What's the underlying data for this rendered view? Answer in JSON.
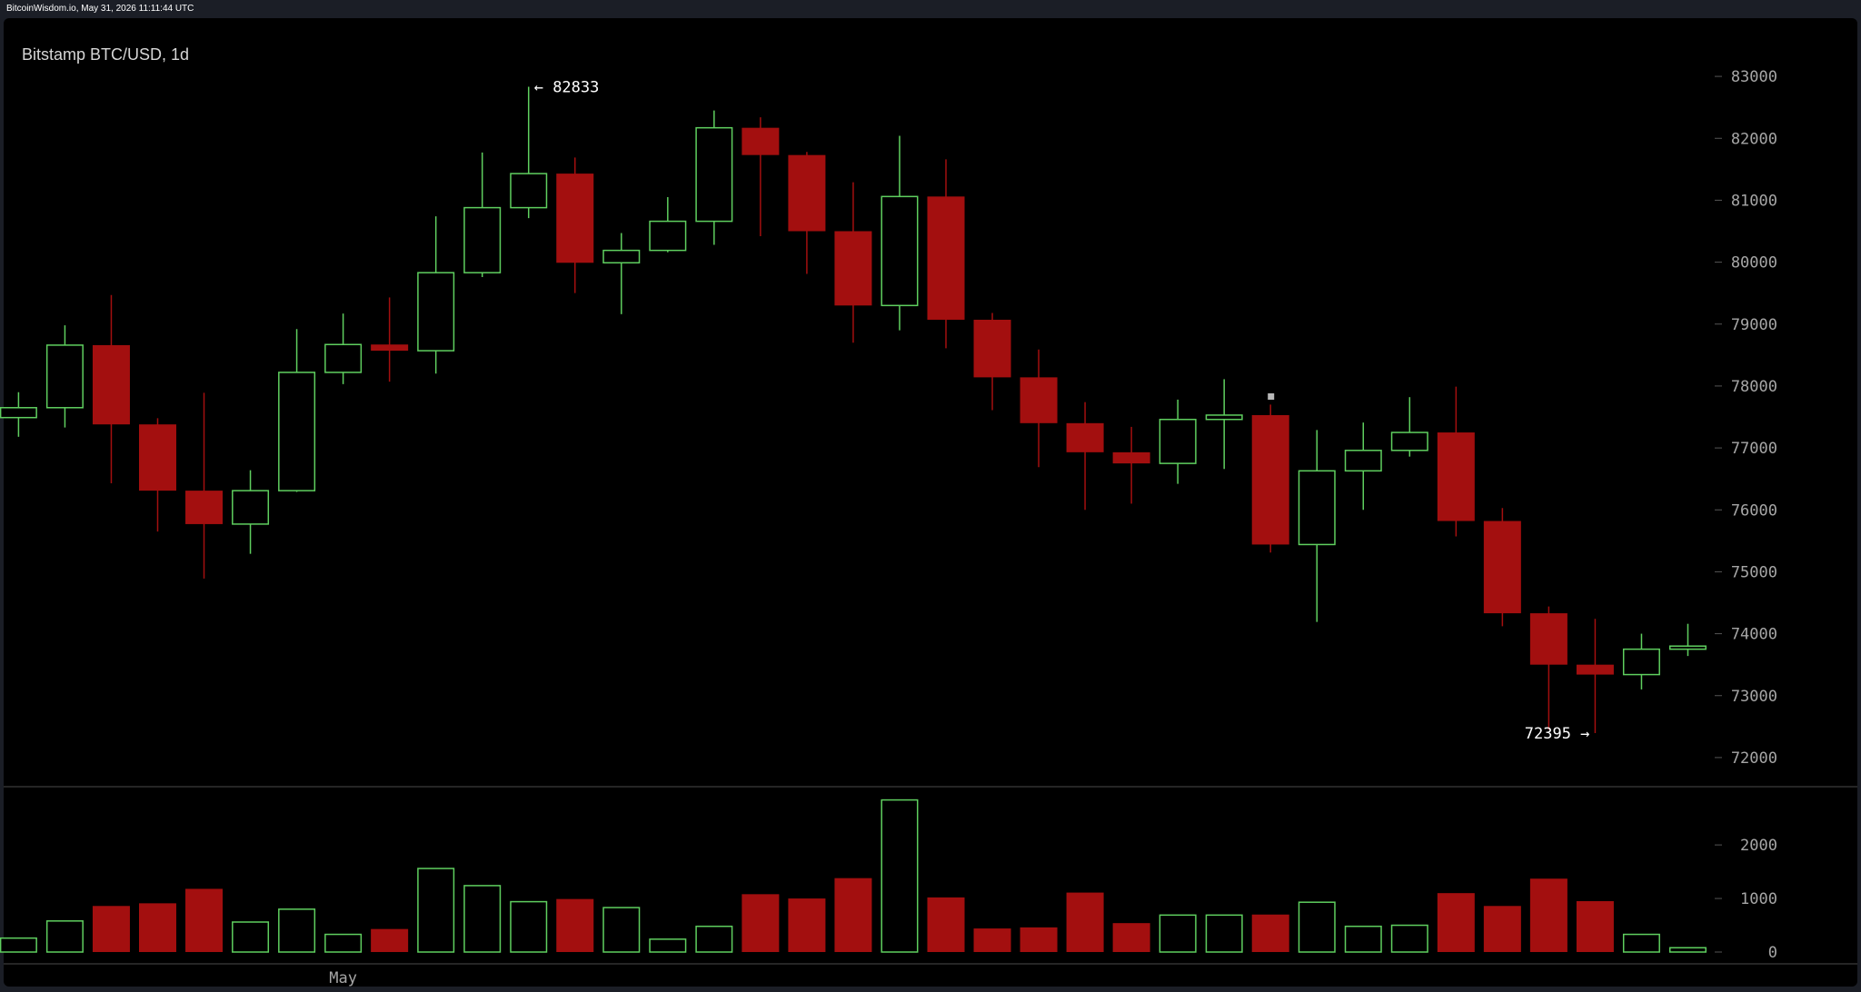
{
  "header": {
    "status_line": "BitcoinWisdom.io, May 31, 2026 11:11:44 UTC"
  },
  "chart_data": {
    "type": "candlestick",
    "title": "Bitstamp BTC/USD, 1d",
    "x_tick_labels": [
      {
        "label": "May",
        "index": 7
      }
    ],
    "price_axis": {
      "ticks": [
        72000,
        73000,
        74000,
        75000,
        76000,
        77000,
        78000,
        79000,
        80000,
        81000,
        82000,
        83000
      ],
      "ylim": [
        71500,
        83500
      ]
    },
    "volume_axis": {
      "ticks": [
        0,
        1000,
        2000
      ],
      "ylim": [
        0,
        2850
      ]
    },
    "annotations": [
      {
        "label": "← 82833",
        "value": 82833,
        "index": 11
      },
      {
        "label": "72395 →",
        "value": 72395,
        "index": 34
      }
    ],
    "up_color": "#5fcf5f",
    "down_color": "#a30f0f",
    "candles": [
      {
        "open": 77490,
        "high": 77900,
        "low": 77180,
        "close": 77650,
        "volume": 260
      },
      {
        "open": 77650,
        "high": 78980,
        "low": 77330,
        "close": 78660,
        "volume": 580
      },
      {
        "open": 78660,
        "high": 79470,
        "low": 76430,
        "close": 77380,
        "volume": 860
      },
      {
        "open": 77380,
        "high": 77480,
        "low": 75650,
        "close": 76310,
        "volume": 910
      },
      {
        "open": 76310,
        "high": 77890,
        "low": 74890,
        "close": 75770,
        "volume": 1180
      },
      {
        "open": 75770,
        "high": 76640,
        "low": 75290,
        "close": 76310,
        "volume": 560
      },
      {
        "open": 76310,
        "high": 78920,
        "low": 76290,
        "close": 78220,
        "volume": 800
      },
      {
        "open": 78220,
        "high": 79170,
        "low": 78030,
        "close": 78670,
        "volume": 330
      },
      {
        "open": 78670,
        "high": 79430,
        "low": 78070,
        "close": 78570,
        "volume": 430
      },
      {
        "open": 78570,
        "high": 80740,
        "low": 78200,
        "close": 79830,
        "volume": 1560
      },
      {
        "open": 79830,
        "high": 81770,
        "low": 79760,
        "close": 80880,
        "volume": 1240
      },
      {
        "open": 80880,
        "high": 82833,
        "low": 80710,
        "close": 81430,
        "volume": 940
      },
      {
        "open": 81430,
        "high": 81690,
        "low": 79500,
        "close": 79990,
        "volume": 990
      },
      {
        "open": 79990,
        "high": 80470,
        "low": 79160,
        "close": 80190,
        "volume": 830
      },
      {
        "open": 80190,
        "high": 81050,
        "low": 80160,
        "close": 80660,
        "volume": 240
      },
      {
        "open": 80660,
        "high": 82450,
        "low": 80280,
        "close": 82170,
        "volume": 480
      },
      {
        "open": 82170,
        "high": 82340,
        "low": 80420,
        "close": 81730,
        "volume": 1080
      },
      {
        "open": 81730,
        "high": 81780,
        "low": 79810,
        "close": 80500,
        "volume": 1000
      },
      {
        "open": 80500,
        "high": 81290,
        "low": 78700,
        "close": 79300,
        "volume": 1380
      },
      {
        "open": 79300,
        "high": 82040,
        "low": 78900,
        "close": 81060,
        "volume": 2840
      },
      {
        "open": 81060,
        "high": 81660,
        "low": 78610,
        "close": 79070,
        "volume": 1020
      },
      {
        "open": 79070,
        "high": 79180,
        "low": 77610,
        "close": 78140,
        "volume": 440
      },
      {
        "open": 78140,
        "high": 78590,
        "low": 76690,
        "close": 77400,
        "volume": 460
      },
      {
        "open": 77400,
        "high": 77740,
        "low": 76000,
        "close": 76930,
        "volume": 1110
      },
      {
        "open": 76930,
        "high": 77340,
        "low": 76100,
        "close": 76750,
        "volume": 540
      },
      {
        "open": 76750,
        "high": 77780,
        "low": 76420,
        "close": 77460,
        "volume": 690
      },
      {
        "open": 77460,
        "high": 78110,
        "low": 76660,
        "close": 77530,
        "volume": 690
      },
      {
        "open": 77530,
        "high": 77700,
        "low": 75310,
        "close": 75440,
        "volume": 700
      },
      {
        "open": 75440,
        "high": 77290,
        "low": 74190,
        "close": 76630,
        "volume": 930
      },
      {
        "open": 76630,
        "high": 77410,
        "low": 76000,
        "close": 76960,
        "volume": 480
      },
      {
        "open": 76960,
        "high": 77820,
        "low": 76860,
        "close": 77250,
        "volume": 500
      },
      {
        "open": 77250,
        "high": 77990,
        "low": 75570,
        "close": 75820,
        "volume": 1100
      },
      {
        "open": 75820,
        "high": 76030,
        "low": 74120,
        "close": 74330,
        "volume": 860
      },
      {
        "open": 74330,
        "high": 74440,
        "low": 72450,
        "close": 73500,
        "volume": 1370
      },
      {
        "open": 73500,
        "high": 74240,
        "low": 72395,
        "close": 73340,
        "volume": 950
      },
      {
        "open": 73340,
        "high": 74000,
        "low": 73100,
        "close": 73750,
        "volume": 330
      },
      {
        "open": 73750,
        "high": 74160,
        "low": 73640,
        "close": 73800,
        "volume": 80
      }
    ]
  }
}
